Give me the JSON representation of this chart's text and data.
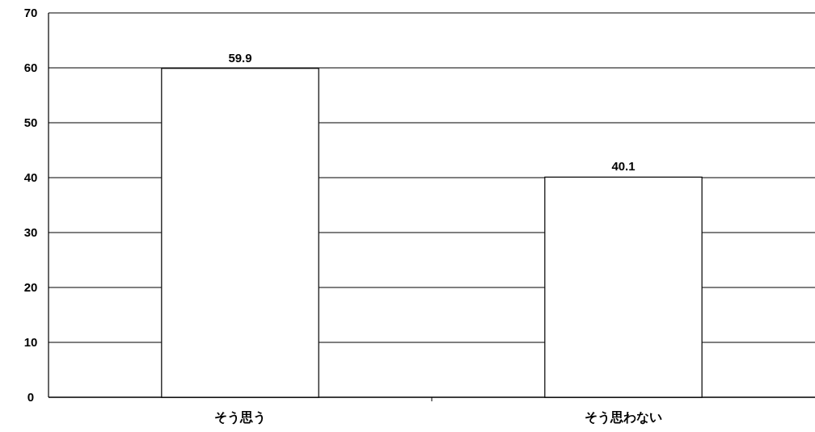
{
  "chart_data": {
    "type": "bar",
    "categories": [
      "そう思う",
      "そう思わない"
    ],
    "values": [
      59.9,
      40.1
    ],
    "color": "#ffffff",
    "ylim": [
      0,
      70
    ],
    "yticks": [
      0,
      10,
      20,
      30,
      40,
      50,
      60,
      70
    ],
    "grid": "y",
    "data_labels": true
  }
}
